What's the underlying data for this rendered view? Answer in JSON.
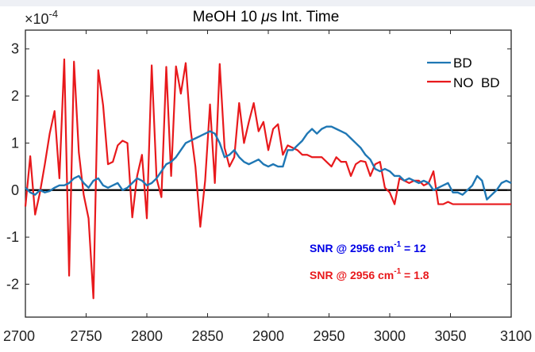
{
  "chart_data": {
    "type": "line",
    "title_prefix": "MeOH 10 ",
    "title_mu": "μ",
    "title_suffix": "s Int. Time",
    "y_exponent_prefix": "×10",
    "y_exponent_power": "-4",
    "xlim": [
      2700,
      3100
    ],
    "ylim": [
      -2.7,
      3.4
    ],
    "xticks": [
      2700,
      2750,
      2800,
      2850,
      2900,
      2950,
      3000,
      3050,
      3100
    ],
    "yticks": [
      -2,
      -1,
      0,
      1,
      2,
      3
    ],
    "xtick_labels": [
      "2700",
      "2750",
      "2800",
      "2850",
      "2900",
      "2950",
      "3000",
      "3050",
      "3100"
    ],
    "ytick_labels": [
      "-2",
      "-1",
      "0",
      "1",
      "2",
      "3"
    ],
    "zero_line": true,
    "grid": false,
    "legend_position": "top-right",
    "series": [
      {
        "name": "BD",
        "color": "#1f77b4",
        "x": [
          2700,
          2704,
          2708,
          2712,
          2716,
          2720,
          2724,
          2728,
          2732,
          2736,
          2740,
          2744,
          2748,
          2752,
          2756,
          2760,
          2764,
          2768,
          2772,
          2776,
          2780,
          2784,
          2788,
          2792,
          2796,
          2800,
          2804,
          2808,
          2812,
          2816,
          2820,
          2824,
          2828,
          2832,
          2836,
          2840,
          2844,
          2848,
          2852,
          2856,
          2860,
          2864,
          2868,
          2872,
          2876,
          2880,
          2884,
          2888,
          2892,
          2896,
          2900,
          2904,
          2908,
          2912,
          2916,
          2920,
          2924,
          2928,
          2932,
          2936,
          2940,
          2944,
          2948,
          2952,
          2956,
          2960,
          2964,
          2968,
          2972,
          2976,
          2980,
          2984,
          2988,
          2992,
          2996,
          3000,
          3004,
          3008,
          3012,
          3016,
          3020,
          3024,
          3028,
          3032,
          3036,
          3040,
          3044,
          3048,
          3052,
          3056,
          3060,
          3064,
          3068,
          3072,
          3076,
          3080,
          3084,
          3088,
          3092,
          3096,
          3100
        ],
        "values": [
          0.05,
          -0.05,
          -0.1,
          0.0,
          -0.05,
          -0.02,
          0.05,
          0.1,
          0.1,
          0.15,
          0.25,
          0.3,
          0.15,
          0.05,
          0.2,
          0.25,
          0.1,
          0.05,
          0.1,
          0.15,
          0.0,
          0.05,
          0.15,
          0.25,
          0.2,
          0.1,
          0.15,
          0.25,
          0.4,
          0.55,
          0.6,
          0.7,
          0.85,
          1.0,
          1.05,
          1.1,
          1.15,
          1.2,
          1.25,
          1.2,
          1.0,
          0.7,
          0.75,
          0.85,
          0.7,
          0.6,
          0.55,
          0.6,
          0.65,
          0.55,
          0.5,
          0.55,
          0.5,
          0.5,
          0.85,
          0.85,
          0.95,
          1.05,
          1.2,
          1.3,
          1.2,
          1.3,
          1.35,
          1.35,
          1.3,
          1.25,
          1.2,
          1.1,
          1.0,
          0.9,
          0.75,
          0.65,
          0.45,
          0.4,
          0.45,
          0.4,
          0.3,
          0.3,
          0.2,
          0.25,
          0.2,
          0.15,
          0.2,
          0.15,
          0.0,
          0.05,
          0.1,
          0.15,
          -0.05,
          -0.05,
          -0.1,
          0.0,
          0.1,
          0.3,
          0.2,
          -0.2,
          -0.1,
          0.0,
          0.15,
          0.2,
          0.15
        ]
      },
      {
        "name": "NO  BD",
        "color": "#e8191c",
        "x": [
          2700,
          2704,
          2708,
          2712,
          2716,
          2720,
          2724,
          2728,
          2732,
          2736,
          2740,
          2744,
          2748,
          2752,
          2756,
          2760,
          2764,
          2768,
          2772,
          2776,
          2780,
          2784,
          2788,
          2792,
          2796,
          2800,
          2804,
          2808,
          2812,
          2816,
          2820,
          2824,
          2828,
          2832,
          2836,
          2840,
          2844,
          2848,
          2852,
          2856,
          2860,
          2864,
          2868,
          2872,
          2876,
          2880,
          2884,
          2888,
          2892,
          2896,
          2900,
          2904,
          2908,
          2912,
          2916,
          2920,
          2924,
          2928,
          2932,
          2936,
          2940,
          2944,
          2948,
          2952,
          2956,
          2960,
          2964,
          2968,
          2972,
          2976,
          2980,
          2984,
          2988,
          2992,
          2996,
          3000,
          3004,
          3008,
          3012,
          3016,
          3020,
          3024,
          3028,
          3032,
          3036,
          3040,
          3044,
          3048,
          3052,
          3056,
          3060,
          3064,
          3068,
          3072,
          3076,
          3080,
          3084,
          3088,
          3092,
          3096,
          3100
        ],
        "values": [
          -0.35,
          0.72,
          -0.52,
          -0.05,
          0.55,
          1.2,
          1.68,
          0.25,
          2.78,
          -1.82,
          2.73,
          0.8,
          -0.1,
          -0.6,
          -2.3,
          2.55,
          1.8,
          0.55,
          0.6,
          0.95,
          1.05,
          1.0,
          -0.58,
          0.3,
          0.75,
          -0.6,
          2.65,
          0.25,
          -0.15,
          2.62,
          0.3,
          2.63,
          2.05,
          2.7,
          1.3,
          0.5,
          -0.78,
          0.2,
          1.82,
          0.15,
          2.68,
          0.9,
          0.5,
          0.7,
          1.85,
          1.0,
          1.45,
          1.85,
          1.25,
          1.45,
          0.85,
          1.3,
          1.4,
          0.75,
          0.95,
          0.9,
          0.85,
          0.75,
          0.75,
          0.7,
          0.7,
          0.7,
          0.6,
          0.5,
          0.7,
          0.6,
          0.6,
          0.3,
          0.55,
          0.62,
          0.6,
          0.3,
          0.55,
          0.6,
          0.05,
          -0.05,
          -0.3,
          0.25,
          0.2,
          0.15,
          0.2,
          0.2,
          0.1,
          0.15,
          0.4,
          -0.3,
          -0.3,
          -0.25,
          -0.3,
          -0.3,
          -0.3,
          -0.3,
          -0.3,
          -0.3,
          -0.3,
          -0.3,
          -0.3,
          -0.3,
          -0.3,
          -0.3,
          -0.3
        ]
      }
    ],
    "annotations": [
      {
        "prefix": "SNR @ 2956 cm",
        "sup": "-1",
        "suffix": " = 12",
        "color": "#0000e6"
      },
      {
        "prefix": "SNR @ 2956 cm",
        "sup": "-1",
        "suffix": " = 1.8",
        "color": "#e8191c"
      }
    ]
  }
}
